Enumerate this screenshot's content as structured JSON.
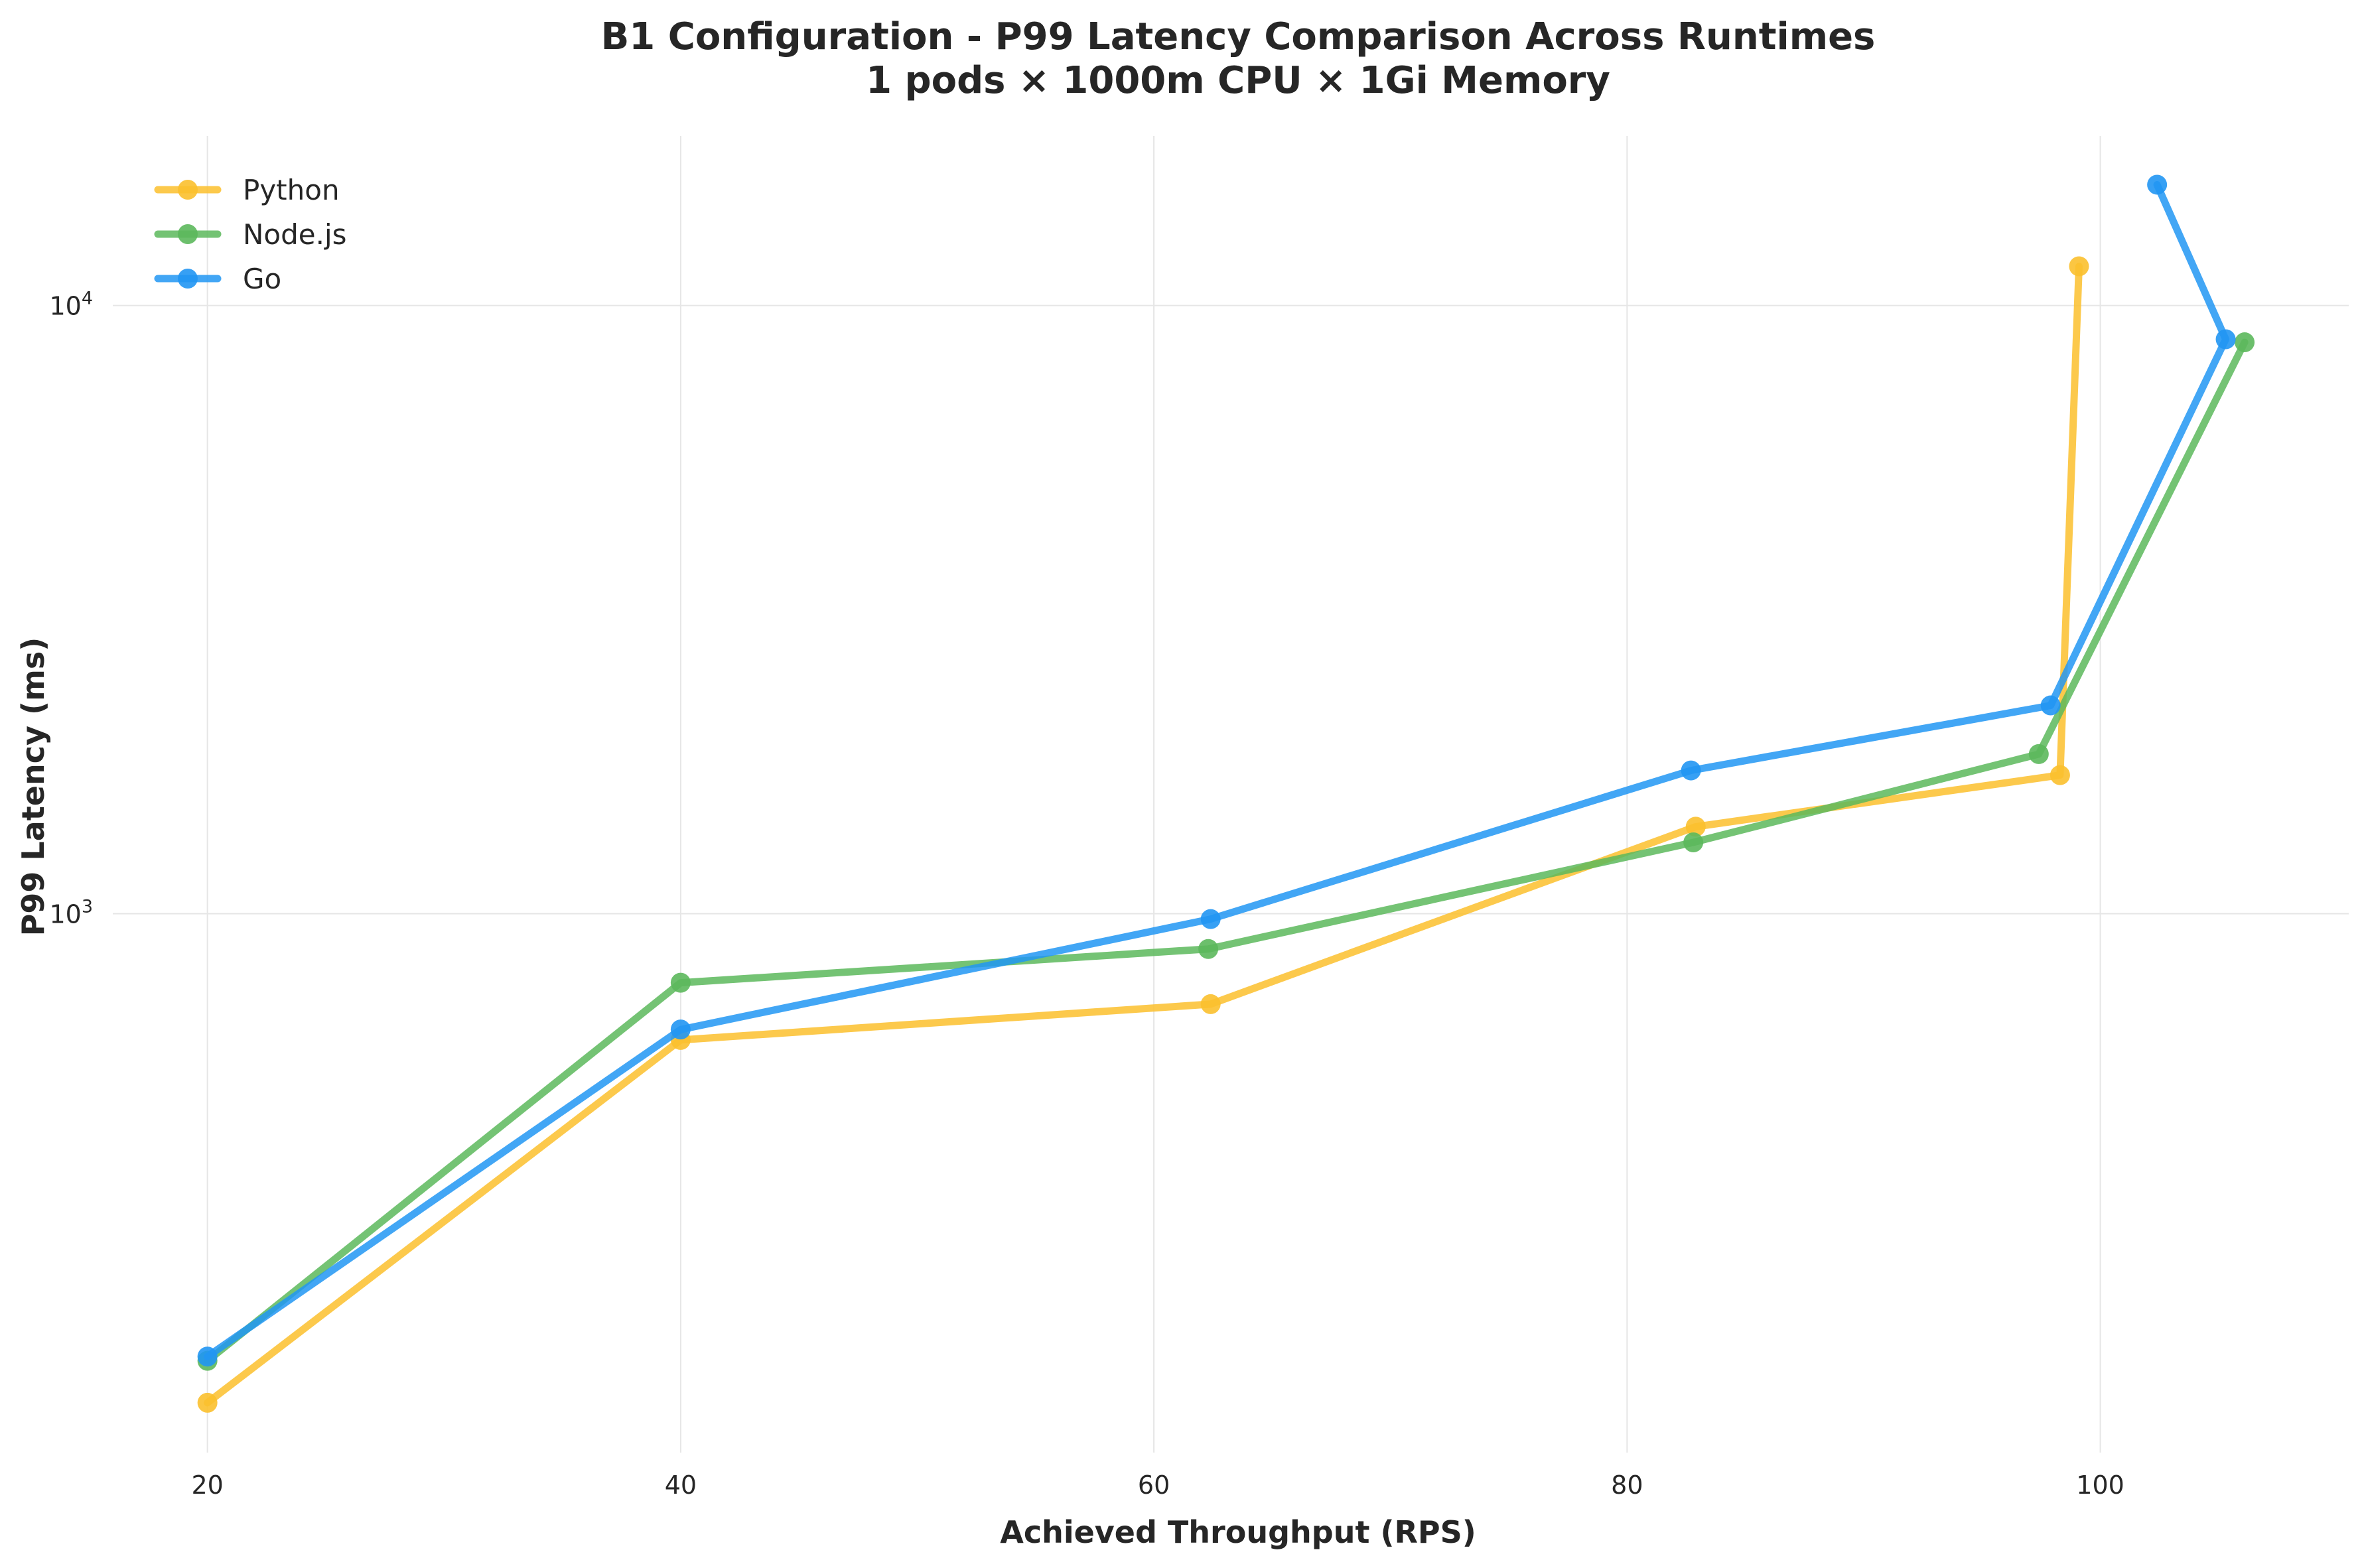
{
  "chart_data": {
    "type": "line",
    "title": "B1 Configuration - P99 Latency Comparison Across Runtimes",
    "subtitle": "1 pods × 1000m CPU × 1Gi Memory",
    "xlabel": "Achieved Throughput (RPS)",
    "ylabel": "P99 Latency (ms)",
    "xscale": "linear",
    "yscale": "log",
    "xlim": [
      16,
      110.5
    ],
    "ylim": [
      130,
      19000
    ],
    "x_ticks": [
      20,
      40,
      60,
      80,
      100
    ],
    "x_tick_labels": [
      "20",
      "40",
      "60",
      "80",
      "100"
    ],
    "y_ticks": [
      1000,
      10000
    ],
    "y_tick_labels": [
      {
        "base": "10",
        "exp": "3"
      },
      {
        "base": "10",
        "exp": "4"
      }
    ],
    "grid": true,
    "legend_position": "top-left",
    "series": [
      {
        "name": "Python",
        "color": "#fbc02d",
        "x": [
          20,
          40,
          62.4,
          82.9,
          98.3,
          99.1
        ],
        "y": [
          157,
          620,
          710,
          1390,
          1690,
          11600
        ]
      },
      {
        "name": "Node.js",
        "color": "#5cb85c",
        "x": [
          20,
          40,
          62.3,
          82.8,
          97.4,
          106.1
        ],
        "y": [
          184,
          770,
          875,
          1310,
          1830,
          8700
        ]
      },
      {
        "name": "Go",
        "color": "#2196f3",
        "x": [
          20,
          40,
          62.4,
          82.7,
          97.9,
          105.3,
          102.4
        ],
        "y": [
          187,
          645,
          980,
          1720,
          2200,
          8800,
          15800
        ]
      }
    ]
  }
}
